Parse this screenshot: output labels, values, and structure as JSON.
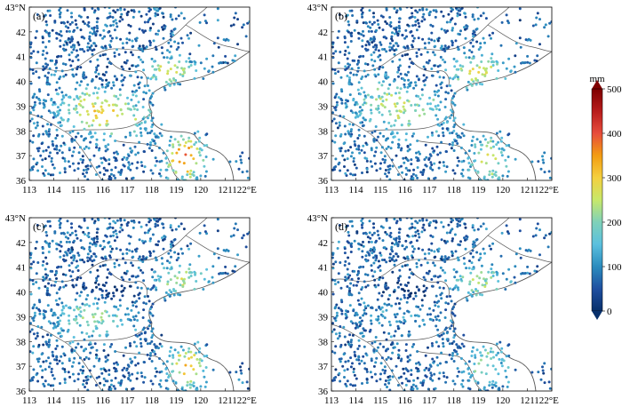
{
  "panels": [
    {
      "label": "(a)",
      "variant": "a"
    },
    {
      "label": "(b)",
      "variant": "b"
    },
    {
      "label": "(c)",
      "variant": "c"
    },
    {
      "label": "(d)",
      "variant": "d"
    }
  ],
  "axes": {
    "lon_ticks": [
      "113",
      "114",
      "115",
      "116",
      "117",
      "118",
      "119",
      "120",
      "121",
      "122°E"
    ],
    "lat_ticks": [
      "43°N",
      "42",
      "41",
      "40",
      "39",
      "38",
      "37",
      "36"
    ]
  },
  "colorbar": {
    "unit": "mm",
    "ticks": [
      "500",
      "400",
      "300",
      "200",
      "100",
      "0"
    ],
    "stops": [
      "#08306b",
      "#1f4fa0",
      "#2b8cbe",
      "#5bc0de",
      "#7fd1b9",
      "#c7e86a",
      "#f4d03f",
      "#f39c12",
      "#e74c3c",
      "#b71c1c",
      "#7f0000"
    ]
  },
  "colors": {
    "land_outline": "#5a5a5a",
    "frame": "#000000"
  }
}
